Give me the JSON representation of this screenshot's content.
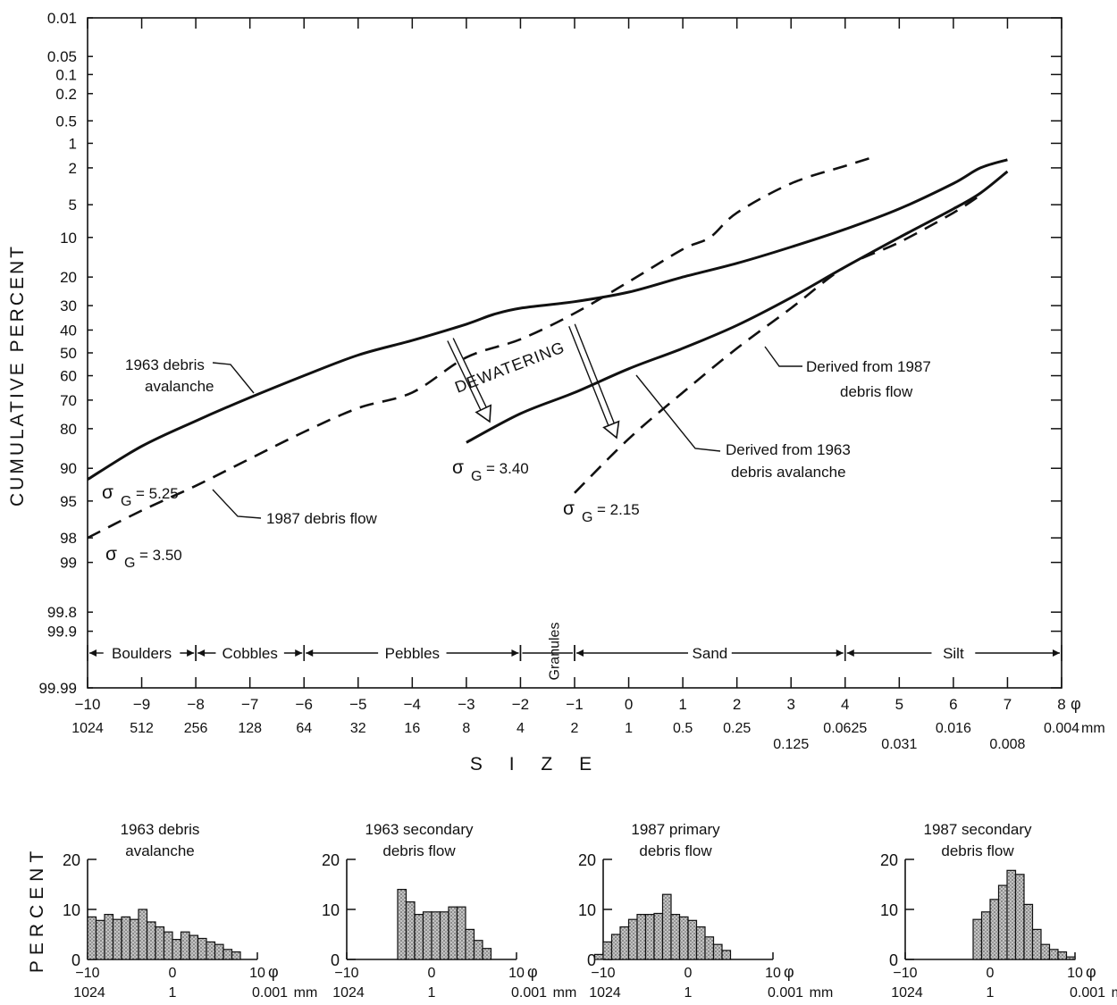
{
  "chart_data": [
    {
      "type": "line",
      "ylabel": "CUMULATIVE PERCENT",
      "xlabel": "S I Z E",
      "x_unit": "φ",
      "mm_unit": "mm",
      "x_range": [
        -10,
        8
      ],
      "y_scale": "probability",
      "y_ticks": [
        "0.01",
        "0.05",
        "0.1",
        "0.2",
        "0.5",
        "1",
        "2",
        "5",
        "10",
        "20",
        "30",
        "40",
        "50",
        "60",
        "70",
        "80",
        "90",
        "95",
        "98",
        "99",
        "99.8",
        "99.9",
        "99.99"
      ],
      "y_tick_values": [
        0.01,
        0.05,
        0.1,
        0.2,
        0.5,
        1,
        2,
        5,
        10,
        20,
        30,
        40,
        50,
        60,
        70,
        80,
        90,
        95,
        98,
        99,
        99.8,
        99.9,
        99.99
      ],
      "phi_ticks": [
        "−10",
        "−9",
        "−8",
        "−7",
        "−6",
        "−5",
        "−4",
        "−3",
        "−2",
        "−1",
        "0",
        "1",
        "2",
        "3",
        "4",
        "5",
        "6",
        "7",
        "8"
      ],
      "mm_ticks": [
        "1024",
        "512",
        "256",
        "128",
        "64",
        "32",
        "16",
        "8",
        "4",
        "2",
        "1",
        "0.5",
        "0.25",
        "0.125",
        "0.0625",
        "0.031",
        "0.016",
        "0.008",
        "0.004"
      ],
      "size_classes": [
        {
          "label": "Boulders",
          "from": -10,
          "to": -8
        },
        {
          "label": "Cobbles",
          "from": -8,
          "to": -6
        },
        {
          "label": "Pebbles",
          "from": -6,
          "to": -2
        },
        {
          "label": "Granules",
          "from": -2,
          "to": -1
        },
        {
          "label": "Sand",
          "from": -1,
          "to": 4
        },
        {
          "label": "Silt",
          "from": 4,
          "to": 8
        }
      ],
      "series": [
        {
          "name": "1963 debris avalanche",
          "style": "solid",
          "x": [
            -10,
            -9,
            -8,
            -7,
            -6,
            -5,
            -4,
            -3,
            -2.5,
            -2,
            -1,
            0,
            1,
            2,
            3,
            4,
            5,
            6,
            6.5,
            7
          ],
          "y": [
            92,
            85,
            77.5,
            69,
            60,
            51,
            44.5,
            37.5,
            33.5,
            31,
            28.5,
            25,
            20,
            16,
            12,
            8.5,
            5.5,
            3,
            2,
            1.6
          ]
        },
        {
          "name": "1987 debris flow",
          "style": "dashed",
          "x": [
            -10,
            -9,
            -8,
            -7,
            -6,
            -5,
            -4,
            -3,
            -2,
            -1,
            0,
            1,
            1.5,
            2,
            3,
            4,
            4.5
          ],
          "y": [
            98,
            96,
            93,
            88,
            81,
            73,
            67,
            52,
            44,
            33,
            21.5,
            12.5,
            10,
            6,
            3,
            1.9,
            1.5
          ]
        },
        {
          "name": "Derived from 1963 debris avalanche",
          "style": "solid",
          "x": [
            -3,
            -2,
            -1,
            0,
            1,
            2,
            3,
            4,
            5,
            6,
            6.5,
            7
          ],
          "y": [
            84,
            75,
            67,
            57,
            48,
            38,
            27,
            17,
            10,
            5.5,
            3.8,
            2.2
          ]
        },
        {
          "name": "Derived from 1987 debris flow",
          "style": "dashed",
          "x": [
            -1,
            0,
            1,
            2,
            3,
            4,
            5,
            6,
            6.5
          ],
          "y": [
            94,
            83,
            67,
            48,
            31,
            17,
            11,
            6,
            4
          ]
        }
      ],
      "annotations": [
        {
          "text": "1963 debris",
          "text2": "avalanche"
        },
        {
          "text": "1987 debris flow"
        },
        {
          "text": "Derived from 1987",
          "text2": "debris flow"
        },
        {
          "text": "Derived from 1963",
          "text2": "debris avalanche"
        },
        {
          "text": "DEWATERING"
        },
        {
          "sigma_symbol": "σ",
          "sub": "G",
          "value": "= 5.25"
        },
        {
          "sigma_symbol": "σ",
          "sub": "G",
          "value": "= 3.50"
        },
        {
          "sigma_symbol": "σ",
          "sub": "G",
          "value": "= 3.40"
        },
        {
          "sigma_symbol": "σ",
          "sub": "G",
          "value": "= 2.15"
        }
      ]
    },
    {
      "type": "bar",
      "ylabel": "PERCENT",
      "y_ticks": [
        "0",
        "10",
        "20"
      ],
      "ylim": [
        0,
        20
      ],
      "x_ticks": [
        "−10",
        "0",
        "10"
      ],
      "x_unit": "φ",
      "mm_ticks": [
        "1024",
        "1",
        "0.001"
      ],
      "mm_unit": "mm",
      "panels": [
        {
          "title": "1963 debris",
          "title2": "avalanche",
          "bins_from": -10,
          "bin_width": 1,
          "values": [
            8.5,
            7.8,
            9,
            8,
            8.5,
            8,
            10,
            7.5,
            6.5,
            5.5,
            4,
            5.5,
            4.8,
            4.2,
            3.5,
            3,
            2,
            1.5
          ]
        },
        {
          "title": "1963 secondary",
          "title2": "debris flow",
          "bins_from": -4,
          "bin_width": 1,
          "values": [
            14,
            11.5,
            9,
            9.5,
            9.5,
            9.5,
            10.5,
            10.5,
            6,
            3.8,
            2.2
          ]
        },
        {
          "title": "1987 primary",
          "title2": "debris flow",
          "bins_from": -11,
          "bin_width": 1,
          "values": [
            1,
            3.5,
            5,
            6.5,
            8,
            9,
            9,
            9.2,
            13,
            9,
            8.5,
            7.8,
            6.5,
            4.5,
            3,
            1.8
          ]
        },
        {
          "title": "1987 secondary",
          "title2": "debris flow",
          "bins_from": -2,
          "bin_width": 1,
          "values": [
            8,
            9.5,
            12,
            14.8,
            17.8,
            17,
            11,
            6,
            3,
            2,
            1.5,
            0.5
          ]
        }
      ]
    }
  ]
}
